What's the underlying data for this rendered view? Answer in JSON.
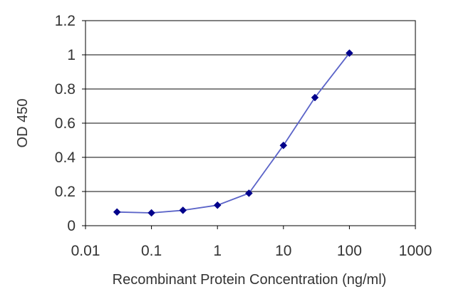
{
  "chart_data": {
    "type": "line",
    "title": "",
    "xlabel": "Recombinant Protein Concentration (ng/ml)",
    "ylabel": "OD 450",
    "xscale": "log",
    "xlim": [
      0.01,
      1000
    ],
    "ylim": [
      0,
      1.2
    ],
    "xticks": [
      "0.01",
      "0.1",
      "1",
      "10",
      "100",
      "1000"
    ],
    "yticks": [
      "0",
      "0.2",
      "0.4",
      "0.6",
      "0.8",
      "1",
      "1.2"
    ],
    "grid": "horizontal",
    "legend": "none",
    "series": [
      {
        "x": [
          0.03,
          0.1,
          0.3,
          1,
          3,
          10,
          30,
          100
        ],
        "y": [
          0.08,
          0.075,
          0.09,
          0.12,
          0.19,
          0.47,
          0.75,
          1.01
        ],
        "color": "#00008b",
        "line_color": "#5a63c8"
      }
    ]
  }
}
